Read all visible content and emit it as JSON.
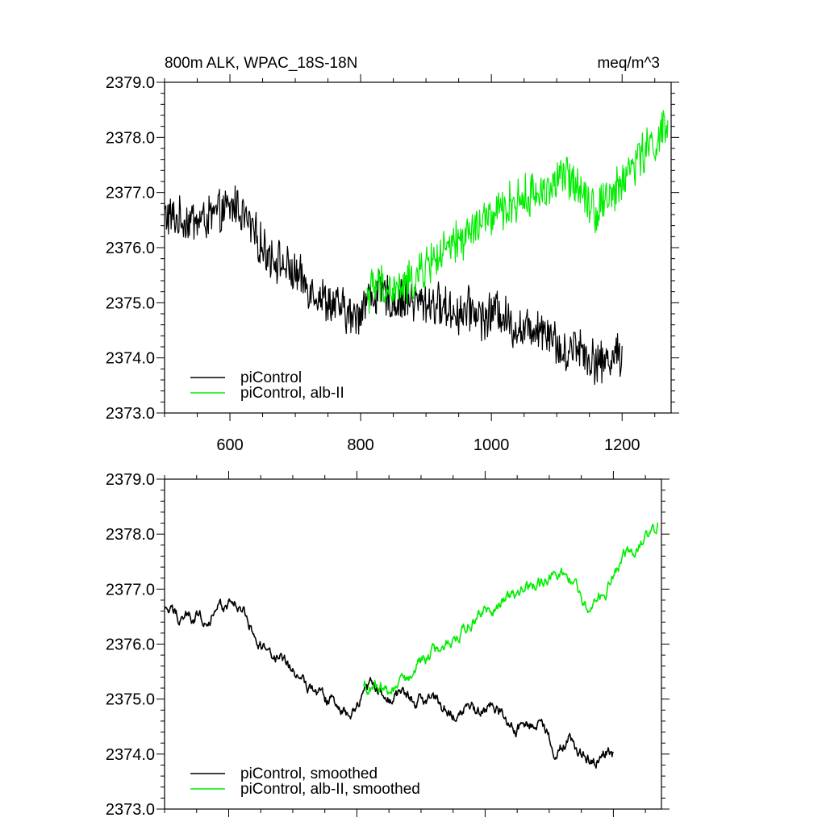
{
  "chart_data": [
    {
      "type": "line",
      "title": "800m ALK, WPAC_18S-18N",
      "units_label": "meq/m^3",
      "xlabel": "",
      "ylabel": "",
      "xlim": [
        500,
        1275
      ],
      "ylim": [
        2373.0,
        2379.0
      ],
      "xticks": [
        600,
        800,
        1000,
        1200
      ],
      "xtick_labels": [
        "600",
        "800",
        "1000",
        "1200"
      ],
      "yticks": [
        2373,
        2374,
        2375,
        2376,
        2377,
        2378,
        2379
      ],
      "ytick_labels": [
        "2373.0",
        "2374.0",
        "2375.0",
        "2376.0",
        "2377.0",
        "2378.0",
        "2379.0"
      ],
      "grid": false,
      "legend": "bottom-left",
      "noise_amplitude": 0.35,
      "series": [
        {
          "name": "piControl",
          "color": "#000000",
          "x": [
            500,
            520,
            540,
            560,
            580,
            600,
            610,
            630,
            650,
            670,
            690,
            710,
            730,
            750,
            770,
            790,
            810,
            830,
            850,
            870,
            890,
            910,
            930,
            950,
            970,
            990,
            1010,
            1030,
            1050,
            1070,
            1090,
            1110,
            1130,
            1150,
            1170,
            1190,
            1200
          ],
          "values": [
            2376.6,
            2376.5,
            2376.5,
            2376.5,
            2376.6,
            2376.7,
            2376.8,
            2376.4,
            2376.0,
            2375.8,
            2375.6,
            2375.4,
            2375.2,
            2375.0,
            2374.9,
            2374.7,
            2375.1,
            2375.2,
            2375.0,
            2375.1,
            2375.0,
            2375.0,
            2374.9,
            2374.8,
            2374.9,
            2374.7,
            2374.9,
            2374.6,
            2374.5,
            2374.6,
            2374.5,
            2374.0,
            2374.3,
            2374.0,
            2373.9,
            2374.1,
            2374.0
          ]
        },
        {
          "name": "piControl, alb-II",
          "color": "#00ee00",
          "x": [
            810,
            830,
            850,
            870,
            890,
            910,
            930,
            950,
            970,
            990,
            1010,
            1030,
            1050,
            1070,
            1090,
            1110,
            1130,
            1150,
            1160,
            1170,
            1190,
            1210,
            1230,
            1250,
            1270
          ],
          "values": [
            2375.2,
            2375.3,
            2375.2,
            2375.3,
            2375.5,
            2375.8,
            2375.9,
            2376.1,
            2376.3,
            2376.5,
            2376.6,
            2376.8,
            2376.9,
            2377.0,
            2377.1,
            2377.3,
            2377.2,
            2376.9,
            2376.6,
            2376.9,
            2377.0,
            2377.4,
            2377.7,
            2377.9,
            2378.2
          ]
        }
      ]
    },
    {
      "type": "line",
      "title": "",
      "xlabel": "",
      "ylabel": "",
      "xlim": [
        500,
        1275
      ],
      "ylim": [
        2373.0,
        2379.0
      ],
      "xticks": [
        600,
        800,
        1000,
        1200
      ],
      "yticks": [
        2373,
        2374,
        2375,
        2376,
        2377,
        2378,
        2379
      ],
      "ytick_labels": [
        "2373.0",
        "2374.0",
        "2375.0",
        "2376.0",
        "2377.0",
        "2378.0",
        "2379.0"
      ],
      "grid": false,
      "legend": "bottom-left",
      "noise_amplitude": 0.08,
      "series": [
        {
          "name": "piControl, smoothed",
          "color": "#000000",
          "x": [
            500,
            520,
            540,
            560,
            580,
            600,
            610,
            630,
            650,
            670,
            690,
            710,
            730,
            750,
            770,
            790,
            810,
            830,
            850,
            870,
            890,
            910,
            930,
            950,
            970,
            990,
            1010,
            1030,
            1050,
            1070,
            1090,
            1110,
            1130,
            1150,
            1170,
            1190,
            1200
          ],
          "values": [
            2376.6,
            2376.5,
            2376.5,
            2376.5,
            2376.6,
            2376.7,
            2376.8,
            2376.4,
            2376.0,
            2375.8,
            2375.6,
            2375.4,
            2375.2,
            2375.0,
            2374.9,
            2374.7,
            2375.1,
            2375.2,
            2375.0,
            2375.1,
            2375.0,
            2375.0,
            2374.9,
            2374.8,
            2374.9,
            2374.7,
            2374.9,
            2374.6,
            2374.5,
            2374.6,
            2374.5,
            2374.0,
            2374.3,
            2374.0,
            2373.9,
            2374.1,
            2374.0
          ]
        },
        {
          "name": "piControl, alb-II, smoothed",
          "color": "#00ee00",
          "x": [
            810,
            830,
            850,
            870,
            890,
            910,
            930,
            950,
            970,
            990,
            1010,
            1030,
            1050,
            1070,
            1090,
            1110,
            1130,
            1150,
            1160,
            1170,
            1190,
            1210,
            1230,
            1250,
            1270
          ],
          "values": [
            2375.2,
            2375.3,
            2375.2,
            2375.3,
            2375.5,
            2375.8,
            2375.9,
            2376.1,
            2376.3,
            2376.5,
            2376.6,
            2376.8,
            2376.9,
            2377.0,
            2377.1,
            2377.3,
            2377.2,
            2376.9,
            2376.6,
            2376.9,
            2377.0,
            2377.4,
            2377.7,
            2377.9,
            2378.2
          ]
        }
      ]
    }
  ]
}
